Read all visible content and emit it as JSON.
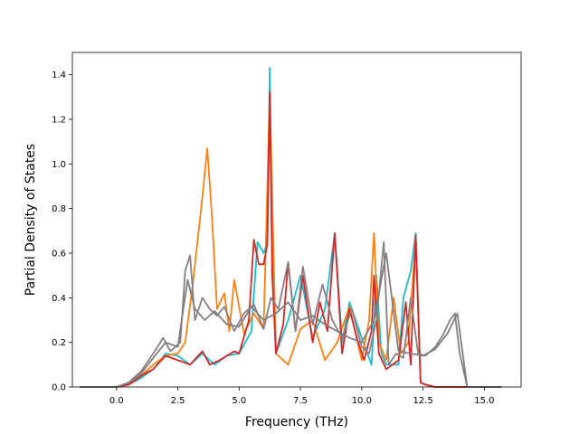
{
  "chart_data": {
    "type": "line",
    "xlabel": "Frequency (THz)",
    "ylabel": "Partial Density of States",
    "xlim": [
      -1.8,
      16.5
    ],
    "ylim": [
      0,
      1.5
    ],
    "xticks": [
      "0.0",
      "2.5",
      "5.0",
      "7.5",
      "10.0",
      "12.5",
      "15.0"
    ],
    "yticks": [
      "0.0",
      "0.2",
      "0.4",
      "0.6",
      "0.8",
      "1.0",
      "1.2",
      "1.4"
    ],
    "grid": false,
    "series": [
      {
        "color": "#17becf",
        "x": [
          -1.5,
          0.0,
          0.5,
          1.0,
          1.5,
          2.0,
          2.5,
          3.0,
          3.5,
          4.0,
          4.5,
          5.0,
          5.5,
          5.75,
          6.0,
          6.15,
          6.25,
          6.35,
          6.5,
          7.0,
          7.5,
          8.0,
          8.5,
          8.9,
          9.2,
          9.5,
          10.0,
          10.4,
          10.6,
          10.8,
          11.0,
          11.5,
          11.7,
          12.0,
          12.2,
          12.4,
          12.6,
          13.0,
          13.5,
          14.0,
          14.3,
          15.7
        ],
        "y": [
          0.0,
          0.0,
          0.01,
          0.04,
          0.08,
          0.15,
          0.14,
          0.1,
          0.15,
          0.1,
          0.14,
          0.15,
          0.25,
          0.65,
          0.6,
          0.65,
          1.43,
          0.58,
          0.15,
          0.3,
          0.5,
          0.22,
          0.35,
          0.69,
          0.2,
          0.38,
          0.22,
          0.1,
          0.5,
          0.15,
          0.1,
          0.1,
          0.4,
          0.52,
          0.69,
          0.02,
          0.01,
          0.0,
          0.0,
          0.0,
          0.0,
          0.0
        ]
      },
      {
        "color": "#ff7f0e",
        "x": [
          -1.5,
          0.0,
          0.5,
          1.0,
          1.5,
          2.0,
          2.5,
          2.8,
          3.1,
          3.3,
          3.5,
          3.7,
          3.9,
          4.1,
          4.4,
          4.6,
          4.8,
          5.2,
          5.6,
          6.0,
          6.25,
          6.5,
          7.0,
          7.5,
          8.0,
          8.5,
          9.0,
          9.5,
          10.0,
          10.3,
          10.5,
          10.7,
          11.0,
          11.3,
          11.6,
          11.9,
          12.2,
          12.4,
          12.6,
          13.0,
          14.0,
          15.7
        ],
        "y": [
          0.0,
          0.0,
          0.01,
          0.05,
          0.1,
          0.14,
          0.15,
          0.2,
          0.45,
          0.65,
          0.85,
          1.07,
          0.75,
          0.35,
          0.42,
          0.25,
          0.48,
          0.24,
          0.33,
          0.26,
          1.32,
          0.15,
          0.1,
          0.26,
          0.3,
          0.12,
          0.2,
          0.36,
          0.12,
          0.3,
          0.69,
          0.2,
          0.12,
          0.4,
          0.15,
          0.2,
          0.66,
          0.02,
          0.01,
          0.0,
          0.0,
          0.0
        ]
      },
      {
        "color": "#d62728",
        "x": [
          -1.5,
          0.0,
          0.5,
          1.0,
          1.5,
          2.0,
          2.5,
          3.0,
          3.5,
          3.8,
          4.2,
          4.5,
          4.8,
          5.0,
          5.4,
          5.6,
          5.8,
          6.0,
          6.15,
          6.25,
          6.35,
          6.5,
          6.8,
          7.0,
          7.3,
          7.6,
          8.0,
          8.3,
          8.6,
          8.9,
          9.2,
          9.5,
          9.8,
          10.1,
          10.4,
          10.5,
          10.7,
          11.0,
          11.5,
          11.8,
          12.0,
          12.2,
          12.4,
          12.6,
          13.0,
          14.0,
          15.7
        ],
        "y": [
          0.0,
          0.0,
          0.01,
          0.05,
          0.08,
          0.14,
          0.12,
          0.1,
          0.16,
          0.1,
          0.12,
          0.14,
          0.16,
          0.15,
          0.3,
          0.66,
          0.55,
          0.55,
          0.64,
          1.32,
          0.5,
          0.15,
          0.28,
          0.56,
          0.25,
          0.5,
          0.2,
          0.38,
          0.25,
          0.69,
          0.15,
          0.35,
          0.22,
          0.12,
          0.25,
          0.5,
          0.15,
          0.08,
          0.12,
          0.38,
          0.1,
          0.68,
          0.02,
          0.01,
          0.0,
          0.0,
          0.0
        ]
      },
      {
        "color": "#8c7f84",
        "x": [
          -1.5,
          0.0,
          0.5,
          1.0,
          1.5,
          1.9,
          2.2,
          2.6,
          2.8,
          3.0,
          3.2,
          3.5,
          3.8,
          4.1,
          4.4,
          4.8,
          5.2,
          5.6,
          6.0,
          6.3,
          6.6,
          7.0,
          7.3,
          7.6,
          8.0,
          8.4,
          8.8,
          9.2,
          9.6,
          10.0,
          10.3,
          10.6,
          10.9,
          11.1,
          11.4,
          11.7,
          12.0,
          12.3,
          12.6,
          13.0,
          13.3,
          13.6,
          13.8,
          14.0,
          14.3,
          15.7
        ],
        "y": [
          0.0,
          0.0,
          0.02,
          0.07,
          0.15,
          0.22,
          0.16,
          0.2,
          0.52,
          0.59,
          0.3,
          0.4,
          0.35,
          0.32,
          0.36,
          0.25,
          0.33,
          0.37,
          0.26,
          0.4,
          0.35,
          0.56,
          0.25,
          0.54,
          0.28,
          0.46,
          0.3,
          0.22,
          0.35,
          0.18,
          0.15,
          0.3,
          0.65,
          0.1,
          0.15,
          0.13,
          0.4,
          0.15,
          0.14,
          0.18,
          0.23,
          0.3,
          0.33,
          0.15,
          0.0,
          0.0
        ]
      },
      {
        "color": "#7f7f7f",
        "x": [
          -1.5,
          0.0,
          0.5,
          1.0,
          1.5,
          2.0,
          2.5,
          2.9,
          3.2,
          3.6,
          4.0,
          4.5,
          5.0,
          5.5,
          6.0,
          6.5,
          7.0,
          7.5,
          8.0,
          8.5,
          9.0,
          9.5,
          10.0,
          10.5,
          11.0,
          11.5,
          12.0,
          12.5,
          13.0,
          13.5,
          13.9,
          14.3,
          15.7
        ],
        "y": [
          0.0,
          0.0,
          0.02,
          0.06,
          0.13,
          0.2,
          0.18,
          0.48,
          0.35,
          0.3,
          0.34,
          0.28,
          0.27,
          0.36,
          0.3,
          0.33,
          0.38,
          0.3,
          0.32,
          0.28,
          0.25,
          0.22,
          0.2,
          0.3,
          0.6,
          0.16,
          0.15,
          0.14,
          0.17,
          0.24,
          0.33,
          0.0,
          0.0
        ]
      }
    ]
  }
}
